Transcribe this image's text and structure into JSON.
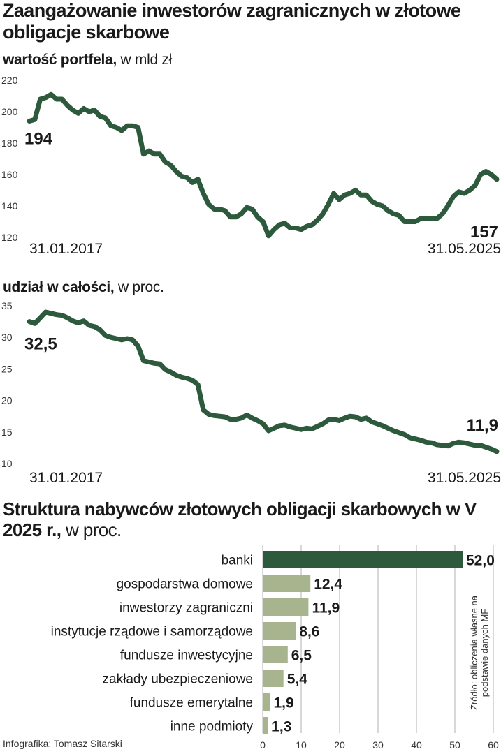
{
  "title": "Zaangażowanie inwestorów zagranicznych w złotowe obligacje skarbowe",
  "chart_data": [
    {
      "type": "line",
      "label_bold": "wartość portfela,",
      "label_unit": "w mld zł",
      "x_labels": [
        "31.01.2017",
        "31.05.2025"
      ],
      "ylim": [
        120,
        220
      ],
      "yticks": [
        120,
        140,
        160,
        180,
        200,
        220
      ],
      "start_label": "194",
      "end_label": "157",
      "series": [
        {
          "values": [
            194,
            195,
            208,
            209,
            211,
            208,
            208,
            204,
            201,
            199,
            202,
            200,
            201,
            197,
            196,
            191,
            190,
            188,
            191,
            191,
            190,
            173,
            175,
            173,
            173,
            168,
            166,
            162,
            159,
            158,
            155,
            157,
            148,
            141,
            138,
            138,
            137,
            133,
            133,
            135,
            139,
            138,
            133,
            130,
            121,
            125,
            128,
            129,
            126,
            126,
            125,
            127,
            128,
            131,
            135,
            141,
            148,
            144,
            147,
            148,
            150,
            147,
            147,
            143,
            141,
            140,
            137,
            135,
            134,
            130,
            130,
            130,
            132,
            132,
            132,
            132,
            135,
            140,
            146,
            149,
            148,
            150,
            153,
            160,
            162,
            160,
            157
          ]
        }
      ],
      "color": "#2d5a3c"
    },
    {
      "type": "line",
      "label_bold": "udział w całości,",
      "label_unit": "w proc.",
      "x_labels": [
        "31.01.2017",
        "31.05.2025"
      ],
      "ylim": [
        10,
        35
      ],
      "yticks": [
        10,
        15,
        20,
        25,
        30,
        35
      ],
      "start_label": "32,5",
      "end_label": "11,9",
      "series": [
        {
          "values": [
            32.5,
            32.2,
            33.1,
            34.0,
            33.8,
            33.6,
            33.5,
            33.1,
            32.6,
            32.3,
            32.6,
            31.9,
            31.7,
            31.2,
            30.3,
            30.0,
            29.8,
            29.6,
            29.8,
            29.6,
            28.6,
            26.3,
            26.1,
            25.9,
            25.8,
            24.9,
            24.5,
            24.0,
            23.7,
            23.5,
            23.2,
            22.5,
            18.5,
            17.8,
            17.6,
            17.5,
            17.4,
            17.0,
            17.0,
            17.2,
            17.7,
            17.2,
            16.8,
            16.3,
            15.2,
            15.6,
            16.0,
            16.1,
            15.8,
            15.6,
            15.4,
            15.6,
            15.5,
            15.9,
            16.3,
            16.9,
            17.0,
            16.8,
            17.2,
            17.5,
            17.4,
            17.0,
            17.2,
            16.6,
            16.3,
            16.0,
            15.6,
            15.2,
            14.9,
            14.6,
            14.1,
            13.9,
            13.7,
            13.4,
            13.3,
            13.0,
            12.9,
            12.8,
            13.2,
            13.4,
            13.3,
            13.1,
            12.9,
            12.9,
            12.6,
            12.3,
            11.9
          ]
        }
      ],
      "color": "#2d5a3c"
    },
    {
      "type": "bar",
      "title_bold": "Struktura nabywców złotowych obligacji skarbowych w V 2025 r.,",
      "title_unit": "w proc.",
      "categories": [
        "banki",
        "gospodarstwa domowe",
        "inwestorzy zagraniczni",
        "instytucje rządowe i samorządowe",
        "fundusze inwestycyjne",
        "zakłady ubezpieczeniowe",
        "fundusze emerytalne",
        "inne podmioty"
      ],
      "values": [
        52.0,
        12.4,
        11.9,
        8.6,
        6.5,
        5.4,
        1.9,
        1.3
      ],
      "value_labels": [
        "52,0",
        "12,4",
        "11,9",
        "8,6",
        "6,5",
        "5,4",
        "1,9",
        "1,3"
      ],
      "xlim": [
        0,
        60
      ],
      "xticks": [
        0,
        10,
        20,
        30,
        40,
        50,
        60
      ],
      "highlight_color": "#2d5a3c",
      "bar_color": "#a8b48e",
      "grid": true
    }
  ],
  "source": "Źródło: obliczenia własne na podstawie danych MF",
  "credit": "Infografika: Tomasz Sitarski"
}
